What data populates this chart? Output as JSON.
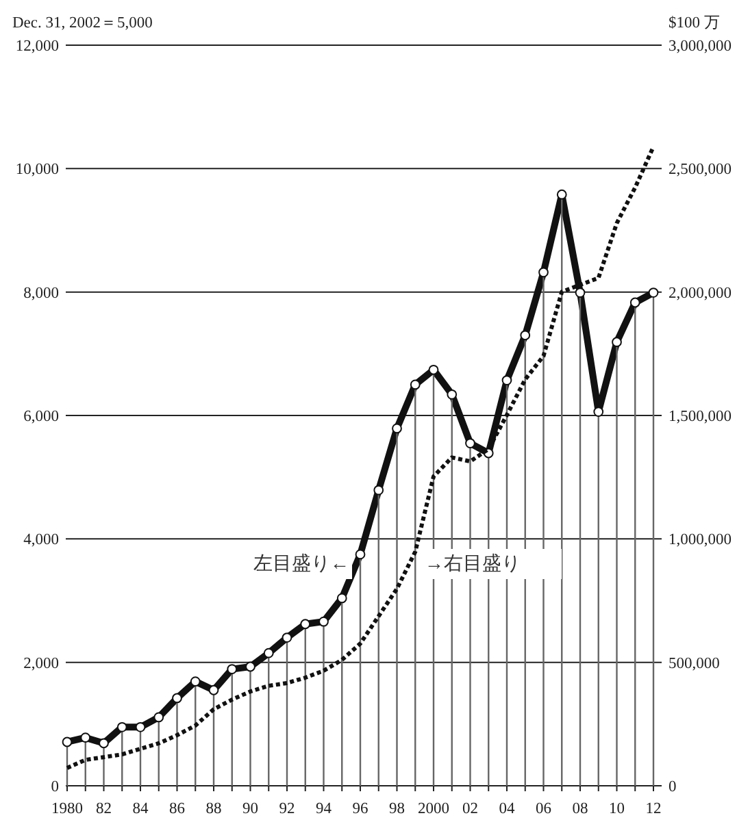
{
  "chart_data": {
    "type": "line",
    "ylabel": "Dec. 31, 2002＝5,000",
    "y2label": "$100 万",
    "x": [
      1980,
      1981,
      1982,
      1983,
      1984,
      1985,
      1986,
      1987,
      1988,
      1989,
      1990,
      1991,
      1992,
      1993,
      1994,
      1995,
      1996,
      1997,
      1998,
      1999,
      2000,
      2001,
      2002,
      2003,
      2004,
      2005,
      2006,
      2007,
      2008,
      2009,
      2010,
      2011,
      2012
    ],
    "series": [
      {
        "color": "#111111",
        "marker": "none",
        "line_style": "solid",
        "values": [
          710,
          780,
          690,
          950,
          950,
          1110,
          1420,
          1690,
          1550,
          1890,
          1930,
          2150,
          2400,
          2620,
          2660,
          3040,
          3750,
          4790,
          5790,
          6500,
          6740,
          6340,
          5550,
          5390,
          6570,
          7300,
          8320,
          9580,
          7990,
          6060,
          7190,
          7830,
          7990
        ]
      },
      {
        "type": "lollipop",
        "color": "#111111",
        "marker": "circle",
        "values": [
          710,
          780,
          690,
          950,
          950,
          1110,
          1420,
          1690,
          1550,
          1890,
          1930,
          2150,
          2400,
          2620,
          2660,
          3040,
          3750,
          4790,
          5790,
          6500,
          6740,
          6340,
          5550,
          5390,
          6570,
          7300,
          8320,
          9580,
          7990,
          6060,
          7190,
          7830,
          7990
        ]
      },
      {
        "color": "#111111",
        "axis": "y2",
        "marker": "none",
        "line_style": "dotted",
        "values": [
          72000,
          105000,
          116000,
          127000,
          150000,
          172000,
          205000,
          244000,
          310000,
          349000,
          382000,
          405000,
          416000,
          438000,
          466000,
          510000,
          576000,
          687000,
          798000,
          948000,
          1253000,
          1330000,
          1314000,
          1364000,
          1502000,
          1646000,
          1741000,
          2001000,
          2029000,
          2057000,
          2279000,
          2423000,
          2589000
        ]
      }
    ],
    "xlim": [
      1980,
      2012
    ],
    "xticks": [
      {
        "value": 1980,
        "label": "1980"
      },
      {
        "value": 1981,
        "label": null
      },
      {
        "value": 1982,
        "label": "82"
      },
      {
        "value": 1983,
        "label": null
      },
      {
        "value": 1984,
        "label": "84"
      },
      {
        "value": 1985,
        "label": null
      },
      {
        "value": 1986,
        "label": "86"
      },
      {
        "value": 1987,
        "label": null
      },
      {
        "value": 1988,
        "label": "88"
      },
      {
        "value": 1989,
        "label": null
      },
      {
        "value": 1990,
        "label": "90"
      },
      {
        "value": 1991,
        "label": null
      },
      {
        "value": 1992,
        "label": "92"
      },
      {
        "value": 1993,
        "label": null
      },
      {
        "value": 1994,
        "label": "94"
      },
      {
        "value": 1995,
        "label": null
      },
      {
        "value": 1996,
        "label": "96"
      },
      {
        "value": 1997,
        "label": null
      },
      {
        "value": 1998,
        "label": "98"
      },
      {
        "value": 1999,
        "label": null
      },
      {
        "value": 2000,
        "label": "2000"
      },
      {
        "value": 2001,
        "label": null
      },
      {
        "value": 2002,
        "label": "02"
      },
      {
        "value": 2003,
        "label": null
      },
      {
        "value": 2004,
        "label": "04"
      },
      {
        "value": 2005,
        "label": null
      },
      {
        "value": 2006,
        "label": "06"
      },
      {
        "value": 2007,
        "label": null
      },
      {
        "value": 2008,
        "label": "08"
      },
      {
        "value": 2009,
        "label": null
      },
      {
        "value": 2010,
        "label": "10"
      },
      {
        "value": 2011,
        "label": null
      },
      {
        "value": 2012,
        "label": "12"
      }
    ],
    "ylim": [
      0,
      12000
    ],
    "yticks": [
      {
        "value": 0,
        "label": "0"
      },
      {
        "value": 2000,
        "label": "2,000"
      },
      {
        "value": 4000,
        "label": "4,000"
      },
      {
        "value": 6000,
        "label": "6,000"
      },
      {
        "value": 8000,
        "label": "8,000"
      },
      {
        "value": 10000,
        "label": "10,000"
      },
      {
        "value": 12000,
        "label": "12,000"
      }
    ],
    "y2lim": [
      0,
      3000000
    ],
    "y2ticks": [
      {
        "value": 0,
        "label": "0"
      },
      {
        "value": 500000,
        "label": "500,000"
      },
      {
        "value": 1000000,
        "label": "1,000,000"
      },
      {
        "value": 1500000,
        "label": "1,500,000"
      },
      {
        "value": 2000000,
        "label": "2,000,000"
      },
      {
        "value": 2500000,
        "label": "2,500,000"
      },
      {
        "value": 3000000,
        "label": "3,000,000"
      }
    ],
    "grid": "y",
    "annotations": [
      "左目盛り←",
      "→右目盛り"
    ]
  }
}
